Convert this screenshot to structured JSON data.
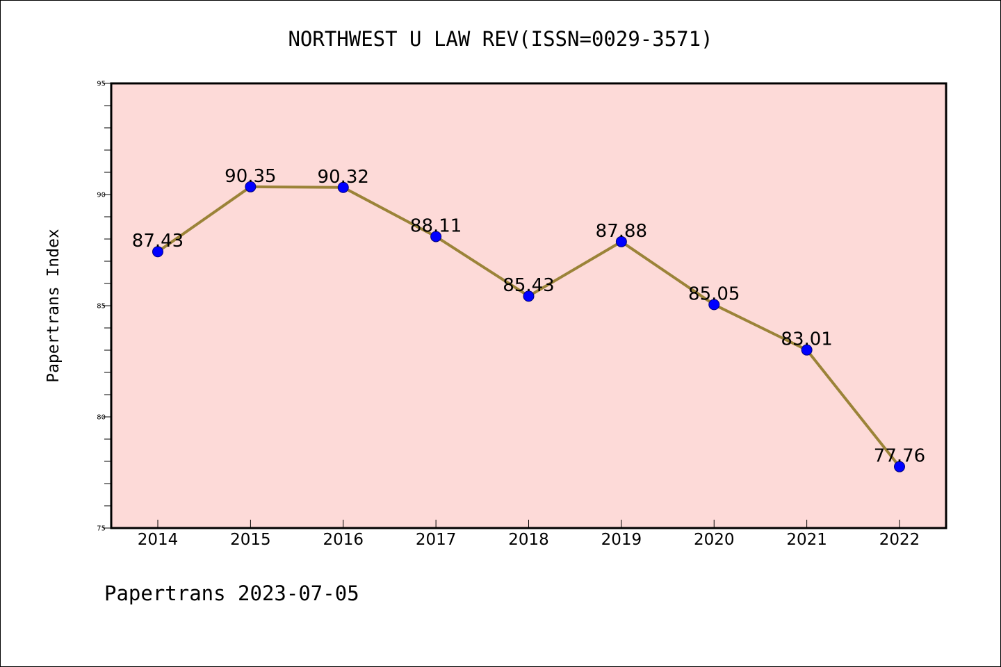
{
  "chart_data": {
    "type": "line",
    "title": "NORTHWEST U LAW REV(ISSN=0029-3571)",
    "xlabel": "",
    "ylabel": "Papertrans Index",
    "categories": [
      "2014",
      "2015",
      "2016",
      "2017",
      "2018",
      "2019",
      "2020",
      "2021",
      "2022"
    ],
    "values": [
      87.43,
      90.35,
      90.32,
      88.11,
      85.43,
      87.88,
      85.05,
      83.01,
      77.76
    ],
    "data_labels": [
      "87.43",
      "90.35",
      "90.32",
      "88.11",
      "85.43",
      "87.88",
      "85.05",
      "83.01",
      "77.76"
    ],
    "ylim": [
      75,
      95
    ],
    "yticks": [
      "75",
      "80",
      "85",
      "90",
      "95"
    ],
    "grid": false,
    "legend": "none",
    "colors": {
      "plot_background": "#fddad8",
      "line": "#9b8338",
      "marker": "#0000ff",
      "axes": "#000000"
    }
  },
  "footer": {
    "text": "Papertrans 2023-07-05"
  }
}
